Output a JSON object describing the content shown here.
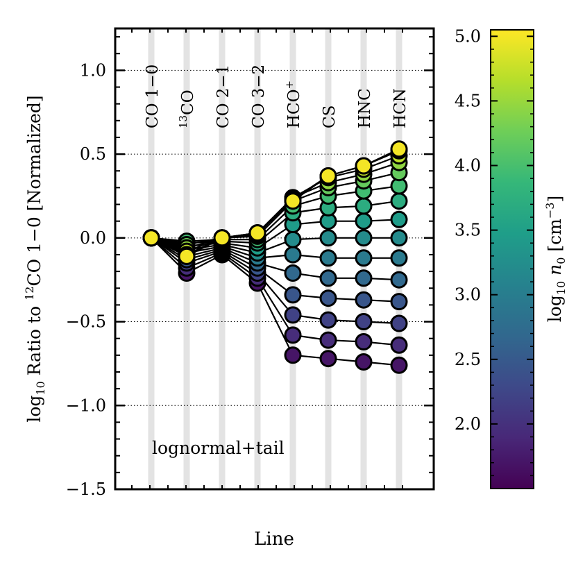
{
  "chart_data": {
    "type": "line",
    "categories": [
      "CO 1−0",
      "CO",
      "CO 2−1",
      "CO 3−2",
      "HCO",
      "CS",
      "HNC",
      "HCN"
    ],
    "category_superscripts": {
      "CO": "13",
      "HCO": "+"
    },
    "ylabel": {
      "prefix": "log",
      "sub": "10",
      "mid": " Ratio to ",
      "sup": "12",
      "suffix": "CO 1−0 [Normalized]"
    },
    "xlabel": "Line",
    "annotation": "lognormal+tail",
    "ylim": [
      -1.5,
      1.25
    ],
    "yticks": [
      1.0,
      0.5,
      0.0,
      -0.5,
      -1.0,
      -1.5
    ],
    "ytick_labels": [
      "1.0",
      "0.5",
      "0.0",
      "−0.5",
      "−1.0",
      "−1.5"
    ],
    "grid": "horizontal-dotted",
    "colorbar": {
      "label": {
        "prefix": "log",
        "sub": "10",
        "var": "n",
        "varsub": "0",
        "unit": "[cm",
        "unitsup": "−3",
        "close": "]"
      },
      "range": [
        1.5,
        5.05
      ],
      "ticks": [
        2.0,
        2.5,
        3.0,
        3.5,
        4.0,
        4.5,
        5.0
      ],
      "tick_labels": [
        "2.0",
        "2.5",
        "3.0",
        "3.5",
        "4.0",
        "4.5",
        "5.0"
      ],
      "colormap": "viridis"
    },
    "series": [
      {
        "n0": 1.7,
        "values": [
          0.0,
          -0.21,
          -0.1,
          -0.27,
          -0.7,
          -0.72,
          -0.74,
          -0.76
        ]
      },
      {
        "n0": 1.95,
        "values": [
          0.0,
          -0.18,
          -0.09,
          -0.24,
          -0.58,
          -0.61,
          -0.62,
          -0.64
        ]
      },
      {
        "n0": 2.2,
        "values": [
          0.0,
          -0.15,
          -0.08,
          -0.21,
          -0.46,
          -0.49,
          -0.5,
          -0.51
        ]
      },
      {
        "n0": 2.45,
        "values": [
          0.0,
          -0.13,
          -0.07,
          -0.18,
          -0.34,
          -0.36,
          -0.37,
          -0.38
        ]
      },
      {
        "n0": 2.7,
        "values": [
          0.0,
          -0.11,
          -0.06,
          -0.15,
          -0.21,
          -0.24,
          -0.24,
          -0.25
        ]
      },
      {
        "n0": 2.95,
        "values": [
          0.0,
          -0.09,
          -0.05,
          -0.12,
          -0.1,
          -0.12,
          -0.12,
          -0.12
        ]
      },
      {
        "n0": 3.2,
        "values": [
          0.0,
          -0.07,
          -0.04,
          -0.09,
          -0.01,
          0.0,
          0.0,
          0.0
        ]
      },
      {
        "n0": 3.45,
        "values": [
          0.0,
          -0.05,
          -0.03,
          -0.06,
          0.08,
          0.1,
          0.1,
          0.11
        ]
      },
      {
        "n0": 3.7,
        "values": [
          0.0,
          -0.03,
          -0.02,
          -0.03,
          0.15,
          0.18,
          0.19,
          0.22
        ]
      },
      {
        "n0": 3.95,
        "values": [
          0.0,
          -0.02,
          -0.01,
          -0.01,
          0.19,
          0.25,
          0.28,
          0.31
        ]
      },
      {
        "n0": 4.2,
        "values": [
          0.0,
          -0.04,
          0.0,
          0.01,
          0.22,
          0.3,
          0.34,
          0.39
        ]
      },
      {
        "n0": 4.45,
        "values": [
          0.0,
          -0.06,
          0.0,
          0.02,
          0.24,
          0.33,
          0.38,
          0.45
        ]
      },
      {
        "n0": 4.7,
        "values": [
          0.0,
          -0.08,
          0.0,
          0.03,
          0.24,
          0.36,
          0.41,
          0.49
        ]
      },
      {
        "n0": 4.9,
        "values": [
          0.0,
          -0.1,
          0.0,
          0.03,
          0.23,
          0.37,
          0.43,
          0.52
        ]
      },
      {
        "n0": 5.0,
        "values": [
          0.0,
          -0.11,
          0.0,
          0.03,
          0.22,
          0.37,
          0.43,
          0.53
        ]
      }
    ]
  }
}
